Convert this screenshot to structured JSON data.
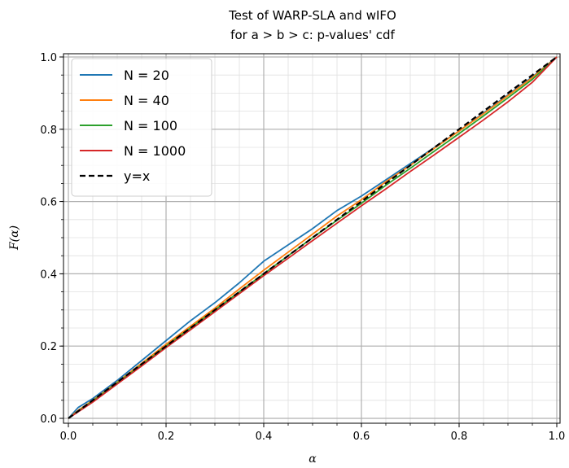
{
  "chart_data": {
    "type": "line",
    "title": [
      "Test of WARP-SLA and wIFO",
      "for a > b > c: p-values' cdf"
    ],
    "xlabel": "α",
    "ylabel": "F(α)",
    "xlim": [
      0,
      1
    ],
    "ylim": [
      0,
      1
    ],
    "xticks": [
      "0.0",
      "0.2",
      "0.4",
      "0.6",
      "0.8",
      "1.0"
    ],
    "yticks": [
      "0.0",
      "0.2",
      "0.4",
      "0.6",
      "0.8",
      "1.0"
    ],
    "grid": true,
    "minor_grid": true,
    "legend_position": "upper-left",
    "x": [
      0,
      0.02,
      0.05,
      0.1,
      0.15,
      0.2,
      0.25,
      0.3,
      0.35,
      0.4,
      0.45,
      0.5,
      0.55,
      0.6,
      0.65,
      0.7,
      0.75,
      0.8,
      0.85,
      0.9,
      0.95,
      1.0
    ],
    "series": [
      {
        "name": "N = 20",
        "color": "#1f77b4",
        "dash": "solid",
        "values": [
          0,
          0.03,
          0.055,
          0.105,
          0.16,
          0.215,
          0.27,
          0.32,
          0.375,
          0.435,
          0.48,
          0.525,
          0.575,
          0.615,
          0.66,
          0.705,
          0.75,
          0.795,
          0.845,
          0.895,
          0.945,
          1.0
        ]
      },
      {
        "name": "N = 40",
        "color": "#ff7f0e",
        "dash": "solid",
        "values": [
          0,
          0.022,
          0.05,
          0.1,
          0.152,
          0.205,
          0.255,
          0.305,
          0.358,
          0.41,
          0.46,
          0.51,
          0.56,
          0.605,
          0.655,
          0.7,
          0.748,
          0.795,
          0.843,
          0.893,
          0.943,
          1.0
        ]
      },
      {
        "name": "N = 100",
        "color": "#2ca02c",
        "dash": "solid",
        "values": [
          0,
          0.02,
          0.048,
          0.098,
          0.148,
          0.2,
          0.25,
          0.3,
          0.35,
          0.4,
          0.45,
          0.5,
          0.548,
          0.595,
          0.645,
          0.692,
          0.74,
          0.788,
          0.837,
          0.887,
          0.938,
          1.0
        ]
      },
      {
        "name": "N = 1000",
        "color": "#d62728",
        "dash": "solid",
        "values": [
          0,
          0.018,
          0.045,
          0.095,
          0.145,
          0.196,
          0.245,
          0.295,
          0.345,
          0.395,
          0.443,
          0.492,
          0.54,
          0.588,
          0.635,
          0.683,
          0.73,
          0.778,
          0.826,
          0.876,
          0.93,
          1.0
        ]
      },
      {
        "name": "y=x",
        "color": "#000000",
        "dash": "dashed",
        "values": [
          0,
          0.02,
          0.05,
          0.1,
          0.15,
          0.2,
          0.25,
          0.3,
          0.35,
          0.4,
          0.45,
          0.5,
          0.55,
          0.6,
          0.65,
          0.7,
          0.75,
          0.8,
          0.85,
          0.9,
          0.95,
          1.0
        ]
      }
    ]
  }
}
